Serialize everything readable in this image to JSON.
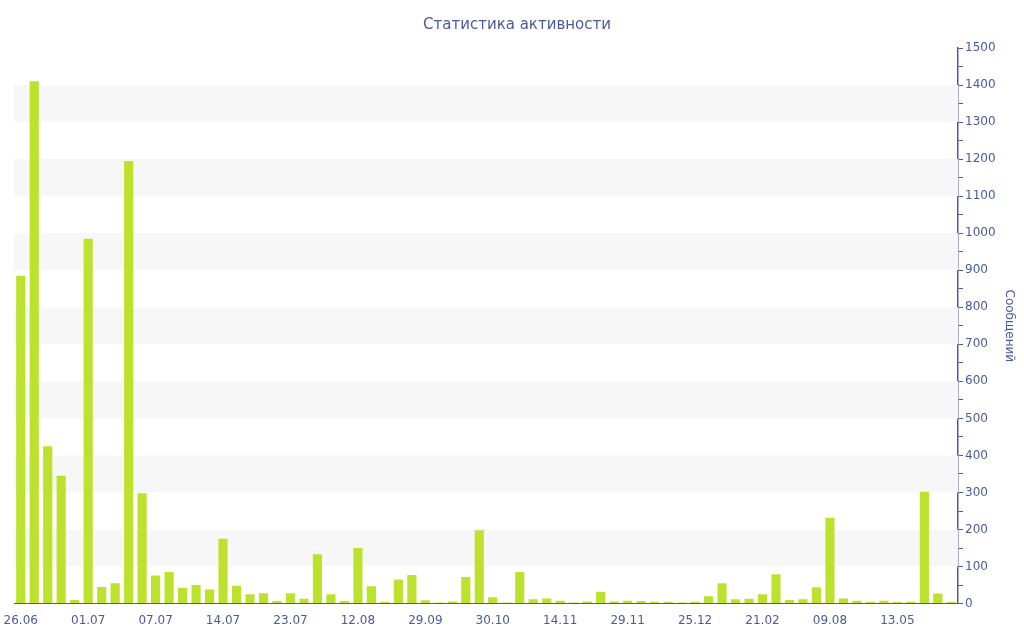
{
  "chart_data": {
    "type": "bar",
    "title": "Статистика активности",
    "y2label": "Сообщений",
    "categories": [
      "26.06",
      null,
      null,
      null,
      null,
      "01.07",
      null,
      null,
      null,
      null,
      "07.07",
      null,
      null,
      null,
      null,
      "14.07",
      null,
      null,
      null,
      null,
      "23.07",
      null,
      null,
      null,
      null,
      "12.08",
      null,
      null,
      null,
      null,
      "29.09",
      null,
      null,
      null,
      null,
      "30.10",
      null,
      null,
      null,
      null,
      "14.11",
      null,
      null,
      null,
      null,
      "29.11",
      null,
      null,
      null,
      null,
      "25.12",
      null,
      null,
      null,
      null,
      "21.02",
      null,
      null,
      null,
      null,
      "09.08",
      null,
      null,
      null,
      null,
      "13.05",
      null,
      null,
      null,
      null
    ],
    "series": [
      {
        "color": "#bde22e",
        "axis": "y2",
        "values": [
          885,
          1410,
          425,
          345,
          10,
          985,
          45,
          55,
          1195,
          298,
          76,
          85,
          43,
          50,
          38,
          175,
          48,
          25,
          28,
          7,
          28,
          13,
          133,
          25,
          7,
          150,
          47,
          5,
          65,
          77,
          9,
          3,
          6,
          72,
          198,
          17,
          3,
          85,
          12,
          14,
          8,
          3,
          6,
          32,
          6,
          8,
          7,
          5,
          5,
          3,
          5,
          20,
          55,
          12,
          13,
          25,
          79,
          10,
          12,
          44,
          232,
          14,
          8,
          5,
          8,
          4,
          5,
          302,
          27,
          4
        ]
      }
    ],
    "y2lim": [
      0,
      1500
    ],
    "y2ticks": [
      0,
      {
        "value": 50,
        "label": null
      },
      100,
      {
        "value": 150,
        "label": null
      },
      200,
      {
        "value": 250,
        "label": null
      },
      300,
      {
        "value": 350,
        "label": null
      },
      400,
      {
        "value": 450,
        "label": null
      },
      500,
      {
        "value": 550,
        "label": null
      },
      600,
      {
        "value": 650,
        "label": null
      },
      700,
      {
        "value": 750,
        "label": null
      },
      800,
      {
        "value": 850,
        "label": null
      },
      900,
      {
        "value": 950,
        "label": null
      },
      1000,
      {
        "value": 1050,
        "label": null
      },
      1100,
      {
        "value": 1150,
        "label": null
      },
      1200,
      {
        "value": 1250,
        "label": null
      },
      1300,
      {
        "value": 1350,
        "label": null
      },
      1400,
      {
        "value": 1450,
        "label": null
      },
      1500
    ],
    "bands": [
      {
        "axis": "y2",
        "from": 100,
        "to": 200,
        "color": "#f7f7f7"
      },
      {
        "axis": "y2",
        "from": 300,
        "to": 400,
        "color": "#f7f7f7"
      },
      {
        "axis": "y2",
        "from": 500,
        "to": 600,
        "color": "#f7f7f7"
      },
      {
        "axis": "y2",
        "from": 700,
        "to": 800,
        "color": "#f7f7f7"
      },
      {
        "axis": "y2",
        "from": 900,
        "to": 1000,
        "color": "#f7f7f7"
      },
      {
        "axis": "y2",
        "from": 1100,
        "to": 1200,
        "color": "#f7f7f7"
      },
      {
        "axis": "y2",
        "from": 1300,
        "to": 1400,
        "color": "#f7f7f7"
      }
    ],
    "legend": false
  }
}
